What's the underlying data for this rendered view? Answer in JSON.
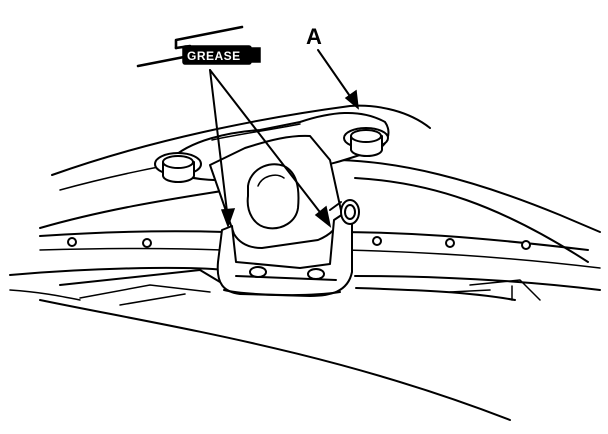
{
  "labels": {
    "callout": "A",
    "grease_tag": "GREASE"
  },
  "colors": {
    "ink": "#000000",
    "paper": "#ffffff"
  },
  "icons": [
    "grease-gun-icon"
  ]
}
